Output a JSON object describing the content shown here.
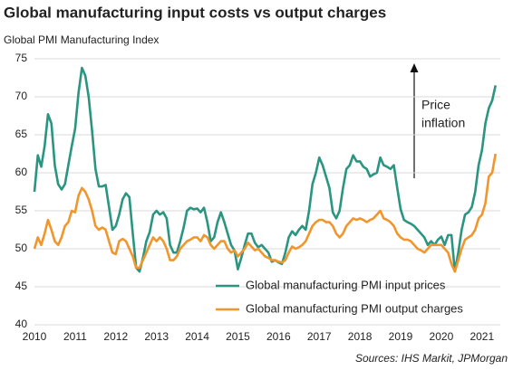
{
  "chart_data": {
    "type": "line",
    "title": "Global manufacturing input costs vs output charges",
    "y_label": "Global PMI Manufacturing Index",
    "source": "Sources: IHS Markit, JPMorgan",
    "annotation": [
      "Price",
      "inflation"
    ],
    "x": [
      2010,
      2010.083,
      2010.167,
      2010.25,
      2010.333,
      2010.417,
      2010.5,
      2010.583,
      2010.667,
      2010.75,
      2010.833,
      2010.917,
      2011,
      2011.083,
      2011.167,
      2011.25,
      2011.333,
      2011.417,
      2011.5,
      2011.583,
      2011.667,
      2011.75,
      2011.833,
      2011.917,
      2012,
      2012.083,
      2012.167,
      2012.25,
      2012.333,
      2012.417,
      2012.5,
      2012.583,
      2012.667,
      2012.75,
      2012.833,
      2012.917,
      2013,
      2013.083,
      2013.167,
      2013.25,
      2013.333,
      2013.417,
      2013.5,
      2013.583,
      2013.667,
      2013.75,
      2013.833,
      2013.917,
      2014,
      2014.083,
      2014.167,
      2014.25,
      2014.333,
      2014.417,
      2014.5,
      2014.583,
      2014.667,
      2014.75,
      2014.833,
      2014.917,
      2015,
      2015.083,
      2015.167,
      2015.25,
      2015.333,
      2015.417,
      2015.5,
      2015.583,
      2015.667,
      2015.75,
      2015.833,
      2015.917,
      2016,
      2016.083,
      2016.167,
      2016.25,
      2016.333,
      2016.417,
      2016.5,
      2016.583,
      2016.667,
      2016.75,
      2016.833,
      2016.917,
      2017,
      2017.083,
      2017.167,
      2017.25,
      2017.333,
      2017.417,
      2017.5,
      2017.583,
      2017.667,
      2017.75,
      2017.833,
      2017.917,
      2018,
      2018.083,
      2018.167,
      2018.25,
      2018.333,
      2018.417,
      2018.5,
      2018.583,
      2018.667,
      2018.75,
      2018.833,
      2018.917,
      2019,
      2019.083,
      2019.167,
      2019.25,
      2019.333,
      2019.417,
      2019.5,
      2019.583,
      2019.667,
      2019.75,
      2019.833,
      2019.917,
      2020,
      2020.083,
      2020.167,
      2020.25,
      2020.333,
      2020.417,
      2020.5,
      2020.583,
      2020.667,
      2020.75,
      2020.833,
      2020.917,
      2021,
      2021.083,
      2021.167,
      2021.25,
      2021.333
    ],
    "series": [
      {
        "name": "Global manufacturing PMI input prices",
        "color": "#2a9580",
        "values": [
          57.5,
          62.3,
          60.8,
          63.5,
          67.7,
          66.5,
          61,
          58.5,
          57.8,
          58.5,
          61,
          63.5,
          65.8,
          70.5,
          73.8,
          72.8,
          70,
          65.5,
          60.5,
          58.2,
          58.2,
          58.4,
          55.5,
          52.5,
          53,
          54.5,
          56.5,
          57.3,
          56.8,
          52,
          47.5,
          47,
          48.8,
          51,
          52.2,
          54.5,
          55,
          54.5,
          54.8,
          54,
          50.5,
          49.5,
          49.5,
          51,
          52.8,
          55,
          55.4,
          55.2,
          55.3,
          54.8,
          55.4,
          53.5,
          51,
          51.5,
          53.5,
          54.8,
          53.5,
          52,
          50.5,
          49.8,
          47.3,
          48.8,
          50.5,
          52,
          52,
          50.8,
          50.2,
          50.5,
          50,
          49.5,
          48.3,
          48.5,
          48.2,
          48,
          49.5,
          51.5,
          52.3,
          51.8,
          52.5,
          53,
          52.5,
          55,
          58.5,
          60,
          62,
          61,
          59.5,
          58,
          54.8,
          54,
          55,
          58,
          60.5,
          61,
          62.3,
          61.5,
          61.5,
          60.8,
          60.5,
          59.5,
          59.8,
          60,
          62,
          61,
          60.8,
          60.5,
          61,
          58,
          55.2,
          53.8,
          53.5,
          53.3,
          53,
          52.5,
          52,
          51.5,
          50.5,
          51,
          50.5,
          51.2,
          51.6,
          50.5,
          51.8,
          51.8,
          47,
          49.5,
          52.5,
          54.5,
          54.8,
          55.5,
          57.5,
          61,
          63,
          66.5,
          68.5,
          69.5,
          71.5
        ]
      },
      {
        "name": "Global manufacturing PMI output charges",
        "color": "#f0962d",
        "values": [
          50,
          51.5,
          50.5,
          52,
          53.8,
          52.5,
          51,
          50.5,
          51.5,
          53,
          53.5,
          55,
          54.8,
          57,
          58,
          57.5,
          56.5,
          55,
          53,
          52.5,
          52.8,
          52.5,
          51,
          49.5,
          49.3,
          51,
          51.3,
          51,
          50,
          49,
          47.5,
          47.5,
          48.5,
          49.5,
          50.5,
          51.5,
          51,
          51.5,
          51,
          50,
          48.5,
          48.5,
          49,
          50,
          50.5,
          51,
          51.2,
          51.5,
          51.5,
          51,
          51.8,
          51.5,
          50.5,
          50,
          50.5,
          51,
          51,
          50,
          49.5,
          49.8,
          49,
          49.5,
          50,
          50.8,
          50.3,
          49.8,
          50,
          49.5,
          49,
          48.8,
          48.5,
          48.5,
          48.3,
          48.2,
          48.5,
          49.5,
          50.3,
          50,
          50.2,
          50.5,
          51,
          52,
          53,
          53.5,
          53.8,
          53.8,
          53.5,
          53.5,
          53,
          52,
          51.5,
          52,
          53,
          53.5,
          54,
          53.8,
          54,
          53.8,
          53.5,
          53.8,
          54,
          54.5,
          55,
          54,
          53.8,
          53.5,
          53,
          52,
          51.5,
          51.2,
          51.2,
          51,
          50.5,
          50,
          49.8,
          49.5,
          50,
          50.5,
          50.5,
          50.5,
          50.5,
          50,
          49.5,
          48,
          47,
          48.5,
          50,
          51.2,
          51.5,
          51.8,
          52.5,
          54,
          54.5,
          56,
          59.5,
          60,
          62.5
        ]
      }
    ],
    "xlim": [
      2010,
      2021.45
    ],
    "xticks": [
      2010,
      2011,
      2012,
      2013,
      2014,
      2015,
      2016,
      2017,
      2018,
      2019,
      2020,
      2021
    ],
    "ylim": [
      40,
      75
    ],
    "yticks": [
      40,
      45,
      50,
      55,
      60,
      65,
      70,
      75
    ],
    "grid": true,
    "legend": "lower right"
  }
}
